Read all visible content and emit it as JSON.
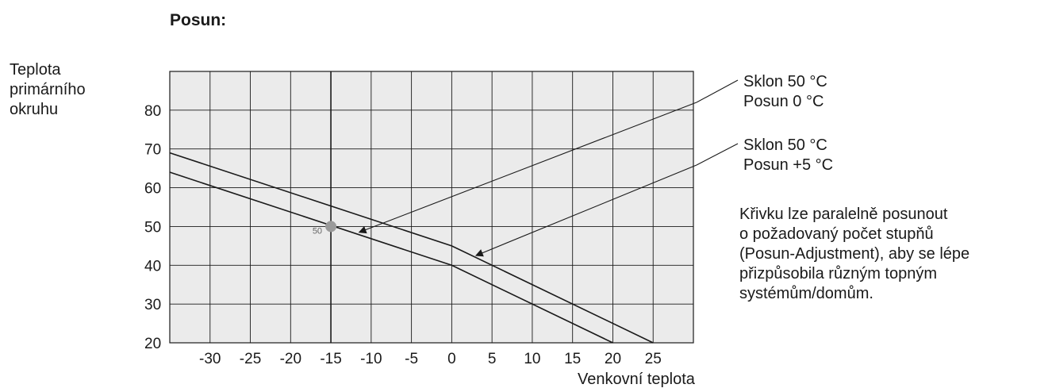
{
  "chart_data": {
    "type": "line",
    "title": "Posun:",
    "ylabel": [
      "Teplota",
      "primárního",
      "okruhu"
    ],
    "xlabel": "Venkovní teplota",
    "xlim": [
      -35,
      30
    ],
    "ylim": [
      20,
      90
    ],
    "xticks": [
      -30,
      -25,
      -20,
      -15,
      -10,
      -5,
      0,
      5,
      10,
      15,
      20,
      25
    ],
    "yticks": [
      20,
      30,
      40,
      50,
      60,
      70,
      80
    ],
    "grid": true,
    "series": [
      {
        "name": "Sklon 50 °C / Posun 0 °C",
        "x": [
          -35,
          0,
          20
        ],
        "y": [
          64,
          40,
          20
        ]
      },
      {
        "name": "Sklon 50 °C / Posun +5 °C",
        "x": [
          -35,
          0,
          25
        ],
        "y": [
          69,
          45,
          20
        ]
      }
    ],
    "marker": {
      "x": -15,
      "y": 50,
      "label": "50"
    },
    "annotations": [
      {
        "lines": [
          "Sklon 50 °C",
          "Posun 0 °C"
        ],
        "arrow_to": {
          "x": -11.5,
          "y": 48.5
        }
      },
      {
        "lines": [
          "Sklon 50 °C",
          "Posun +5 °C"
        ],
        "arrow_to": {
          "x": 3,
          "y": 42.5
        }
      }
    ],
    "description": [
      "Křivku lze paralelně posunout",
      "o požadovaný počet stupňů",
      "(Posun-Adjustment), aby se lépe",
      "přizpůsobila různým topným",
      "systémům/domům."
    ],
    "colors": {
      "plot_background": "#ebebeb",
      "grid": "#1a1a1a",
      "marker": "#9a9a9a"
    }
  }
}
